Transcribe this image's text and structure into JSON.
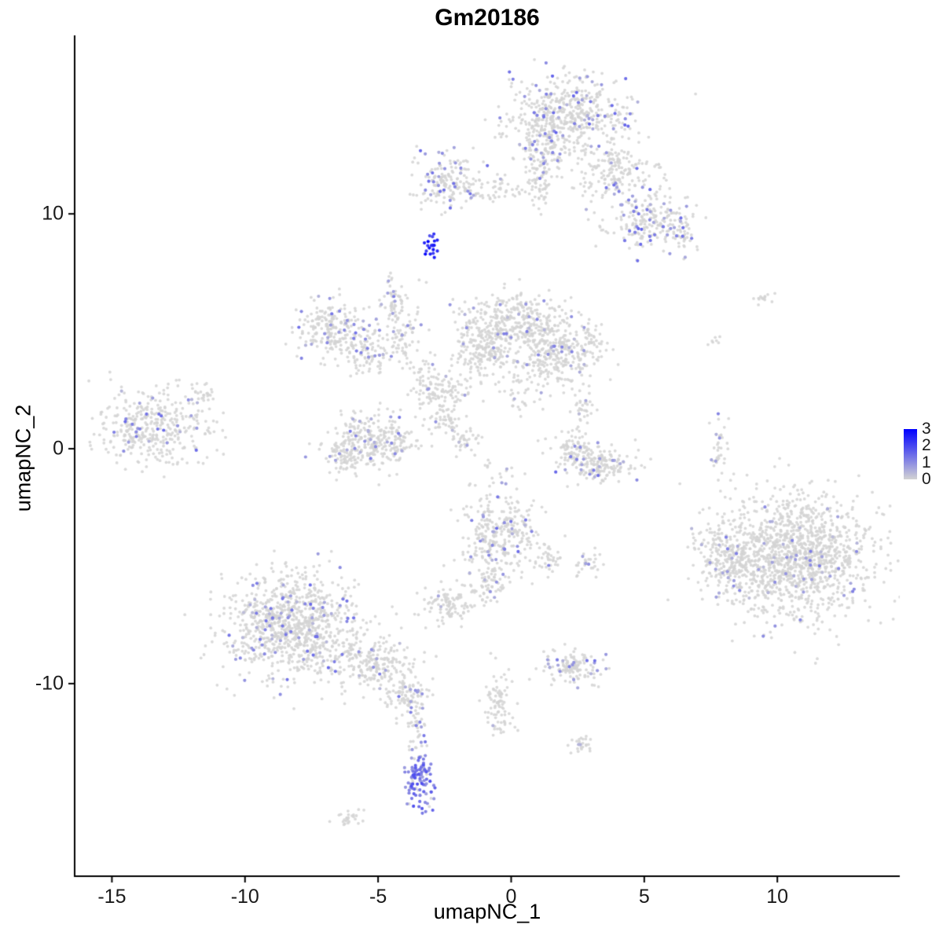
{
  "page": {
    "background": "#ffffff"
  },
  "chart_data": {
    "type": "scatter",
    "title": "Gm20186",
    "xlabel": "umapNC_1",
    "ylabel": "umapNC_2",
    "xlim": [
      -16.4,
      14.6
    ],
    "ylim": [
      -18.2,
      17.6
    ],
    "xticks": [
      -15,
      -10,
      -5,
      0,
      5,
      10
    ],
    "yticks": [
      -10,
      0,
      10
    ],
    "grid": false,
    "seed": 42,
    "legend": {
      "position": "right",
      "ticks": [
        3,
        2,
        1,
        0
      ],
      "vmin": 0,
      "vmax": 3,
      "low_color": "#D3D3D3",
      "high_color": "#0000FF"
    },
    "point": {
      "radius_px": 1.9,
      "base_color": "#D3D3D3"
    },
    "clusters": [
      {
        "x": 2.0,
        "y": 14.2,
        "sx": 1.15,
        "sy": 0.85,
        "n": 520,
        "frac": 0.1,
        "vlo": 0.4,
        "vhi": 1.6
      },
      {
        "x": 1.2,
        "y": 12.6,
        "sx": 0.5,
        "sy": 0.7,
        "n": 110,
        "frac": 0.08,
        "vlo": 0.4,
        "vhi": 1.2
      },
      {
        "x": 1.1,
        "y": 11.2,
        "sx": 0.25,
        "sy": 0.5,
        "n": 45,
        "frac": 0.05,
        "vlo": 0.4,
        "vhi": 1.0
      },
      {
        "x": 3.9,
        "y": 11.8,
        "sx": 0.85,
        "sy": 0.6,
        "n": 170,
        "frac": 0.09,
        "vlo": 0.4,
        "vhi": 1.4
      },
      {
        "x": 5.1,
        "y": 9.7,
        "sx": 0.8,
        "sy": 0.65,
        "n": 200,
        "frac": 0.13,
        "vlo": 0.4,
        "vhi": 1.6
      },
      {
        "x": 6.3,
        "y": 9.2,
        "sx": 0.35,
        "sy": 0.45,
        "n": 55,
        "frac": 0.15,
        "vlo": 0.5,
        "vhi": 1.5
      },
      {
        "x": -2.3,
        "y": 11.4,
        "sx": 0.6,
        "sy": 0.55,
        "n": 170,
        "frac": 0.15,
        "vlo": 0.4,
        "vhi": 1.5
      },
      {
        "x": -0.6,
        "y": 11.0,
        "sx": 0.8,
        "sy": 0.3,
        "n": 55,
        "frac": 0.03,
        "vlo": 0.3,
        "vhi": 0.8
      },
      {
        "x": -3.0,
        "y": 8.7,
        "sx": 0.12,
        "sy": 0.28,
        "n": 20,
        "frac": 1.0,
        "vlo": 1.8,
        "vhi": 3.0
      },
      {
        "x": -4.5,
        "y": 7.0,
        "sx": 0.15,
        "sy": 0.3,
        "n": 10,
        "frac": 0.5,
        "vlo": 0.5,
        "vhi": 1.2
      },
      {
        "x": -6.8,
        "y": 5.1,
        "sx": 0.65,
        "sy": 0.6,
        "n": 210,
        "frac": 0.1,
        "vlo": 0.4,
        "vhi": 1.4
      },
      {
        "x": -5.4,
        "y": 4.1,
        "sx": 0.5,
        "sy": 0.5,
        "n": 100,
        "frac": 0.08,
        "vlo": 0.4,
        "vhi": 1.2
      },
      {
        "x": -4.4,
        "y": 6.2,
        "sx": 0.3,
        "sy": 0.35,
        "n": 45,
        "frac": 0.08,
        "vlo": 0.4,
        "vhi": 1.0
      },
      {
        "x": -4.1,
        "y": 4.7,
        "sx": 0.3,
        "sy": 0.7,
        "n": 70,
        "frac": 0.06,
        "vlo": 0.4,
        "vhi": 1.0
      },
      {
        "x": 0.0,
        "y": 5.4,
        "sx": 0.95,
        "sy": 0.6,
        "n": 320,
        "frac": 0.06,
        "vlo": 0.3,
        "vhi": 1.2
      },
      {
        "x": 1.6,
        "y": 4.2,
        "sx": 0.85,
        "sy": 0.7,
        "n": 330,
        "frac": 0.06,
        "vlo": 0.3,
        "vhi": 1.2
      },
      {
        "x": -1.1,
        "y": 4.2,
        "sx": 0.6,
        "sy": 0.55,
        "n": 160,
        "frac": 0.06,
        "vlo": 0.3,
        "vhi": 1.2
      },
      {
        "x": -2.5,
        "y": 2.4,
        "sx": 0.5,
        "sy": 0.5,
        "n": 100,
        "frac": 0.06,
        "vlo": 0.3,
        "vhi": 1.0
      },
      {
        "x": -2.4,
        "y": 1.2,
        "sx": 0.3,
        "sy": 0.3,
        "n": 40,
        "frac": 0.05,
        "vlo": 0.3,
        "vhi": 1.0
      },
      {
        "x": -5.1,
        "y": 0.3,
        "sx": 0.85,
        "sy": 0.6,
        "n": 300,
        "frac": 0.07,
        "vlo": 0.4,
        "vhi": 1.3
      },
      {
        "x": -6.3,
        "y": -0.4,
        "sx": 0.3,
        "sy": 0.3,
        "n": 50,
        "frac": 0.06,
        "vlo": 0.3,
        "vhi": 1.0
      },
      {
        "x": -1.8,
        "y": 0.2,
        "sx": 0.3,
        "sy": 0.3,
        "n": 35,
        "frac": 0.05,
        "vlo": 0.3,
        "vhi": 1.0
      },
      {
        "x": -13.4,
        "y": 0.9,
        "sx": 1.05,
        "sy": 0.85,
        "n": 380,
        "frac": 0.08,
        "vlo": 0.4,
        "vhi": 1.5
      },
      {
        "x": -11.6,
        "y": 2.3,
        "sx": 0.25,
        "sy": 0.25,
        "n": 25,
        "frac": 0.05,
        "vlo": 0.3,
        "vhi": 0.8
      },
      {
        "x": 2.3,
        "y": 0.0,
        "sx": 0.5,
        "sy": 0.45,
        "n": 100,
        "frac": 0.08,
        "vlo": 0.4,
        "vhi": 1.2
      },
      {
        "x": 3.5,
        "y": -0.7,
        "sx": 0.7,
        "sy": 0.4,
        "n": 150,
        "frac": 0.12,
        "vlo": 0.4,
        "vhi": 1.6
      },
      {
        "x": 2.7,
        "y": 1.8,
        "sx": 0.25,
        "sy": 0.35,
        "n": 30,
        "frac": 0.05,
        "vlo": 0.3,
        "vhi": 0.8
      },
      {
        "x": -0.4,
        "y": -3.6,
        "sx": 0.75,
        "sy": 0.85,
        "n": 300,
        "frac": 0.1,
        "vlo": 0.4,
        "vhi": 1.5
      },
      {
        "x": -0.8,
        "y": -5.7,
        "sx": 0.3,
        "sy": 0.5,
        "n": 55,
        "frac": 0.06,
        "vlo": 0.3,
        "vhi": 1.0
      },
      {
        "x": 1.4,
        "y": -4.7,
        "sx": 0.3,
        "sy": 0.3,
        "n": 35,
        "frac": 0.08,
        "vlo": 0.3,
        "vhi": 1.2
      },
      {
        "x": -2.3,
        "y": -6.6,
        "sx": 0.55,
        "sy": 0.4,
        "n": 110,
        "frac": 0.05,
        "vlo": 0.3,
        "vhi": 1.0
      },
      {
        "x": 2.9,
        "y": -4.9,
        "sx": 0.3,
        "sy": 0.25,
        "n": 30,
        "frac": 0.08,
        "vlo": 0.3,
        "vhi": 1.0
      },
      {
        "x": -8.3,
        "y": -7.5,
        "sx": 1.25,
        "sy": 1.1,
        "n": 950,
        "frac": 0.09,
        "vlo": 0.3,
        "vhi": 1.5
      },
      {
        "x": -5.2,
        "y": -9.2,
        "sx": 0.8,
        "sy": 0.55,
        "n": 230,
        "frac": 0.06,
        "vlo": 0.3,
        "vhi": 1.2
      },
      {
        "x": -3.9,
        "y": -10.6,
        "sx": 0.35,
        "sy": 0.5,
        "n": 90,
        "frac": 0.18,
        "vlo": 0.4,
        "vhi": 1.3
      },
      {
        "x": -3.5,
        "y": -12.2,
        "sx": 0.18,
        "sy": 0.8,
        "n": 45,
        "frac": 0.3,
        "vlo": 0.4,
        "vhi": 1.3
      },
      {
        "x": -3.4,
        "y": -14.1,
        "sx": 0.3,
        "sy": 0.65,
        "n": 95,
        "frac": 0.85,
        "vlo": 0.7,
        "vhi": 1.9
      },
      {
        "x": -6.1,
        "y": -15.7,
        "sx": 0.3,
        "sy": 0.18,
        "n": 25,
        "frac": 0.0,
        "vlo": 0,
        "vhi": 0
      },
      {
        "x": 10.6,
        "y": -4.6,
        "sx": 1.45,
        "sy": 1.3,
        "n": 1350,
        "frac": 0.035,
        "vlo": 0.3,
        "vhi": 1.3
      },
      {
        "x": 8.1,
        "y": -4.8,
        "sx": 0.6,
        "sy": 0.75,
        "n": 180,
        "frac": 0.05,
        "vlo": 0.3,
        "vhi": 1.2
      },
      {
        "x": 7.8,
        "y": 0.1,
        "sx": 0.16,
        "sy": 0.6,
        "n": 35,
        "frac": 0.1,
        "vlo": 0.4,
        "vhi": 1.2
      },
      {
        "x": 7.7,
        "y": 4.7,
        "sx": 0.15,
        "sy": 0.15,
        "n": 7,
        "frac": 0.0,
        "vlo": 0,
        "vhi": 0
      },
      {
        "x": 9.5,
        "y": 6.4,
        "sx": 0.3,
        "sy": 0.2,
        "n": 14,
        "frac": 0.0,
        "vlo": 0,
        "vhi": 0
      },
      {
        "x": 2.3,
        "y": -9.3,
        "sx": 0.55,
        "sy": 0.35,
        "n": 130,
        "frac": 0.12,
        "vlo": 0.4,
        "vhi": 1.4
      },
      {
        "x": -0.5,
        "y": -11.0,
        "sx": 0.28,
        "sy": 0.85,
        "n": 85,
        "frac": 0.03,
        "vlo": 0.3,
        "vhi": 0.8
      },
      {
        "x": 2.6,
        "y": -12.5,
        "sx": 0.25,
        "sy": 0.2,
        "n": 25,
        "frac": 0.05,
        "vlo": 0.3,
        "vhi": 0.8
      },
      {
        "x": 3.2,
        "y": 4.6,
        "sx": 0.25,
        "sy": 0.2,
        "n": 20,
        "frac": 0.0,
        "vlo": 0,
        "vhi": 0
      },
      {
        "x": -0.6,
        "y": -1.1,
        "sx": 0.5,
        "sy": 0.4,
        "n": 18,
        "frac": 0.05,
        "vlo": 0.3,
        "vhi": 0.8
      },
      {
        "x": 0.4,
        "y": 2.5,
        "sx": 0.6,
        "sy": 0.5,
        "n": 40,
        "frac": 0.05,
        "vlo": 0.3,
        "vhi": 0.8
      },
      {
        "x": -3.3,
        "y": 3.2,
        "sx": 0.4,
        "sy": 0.5,
        "n": 40,
        "frac": 0.05,
        "vlo": 0.3,
        "vhi": 0.8
      }
    ]
  }
}
